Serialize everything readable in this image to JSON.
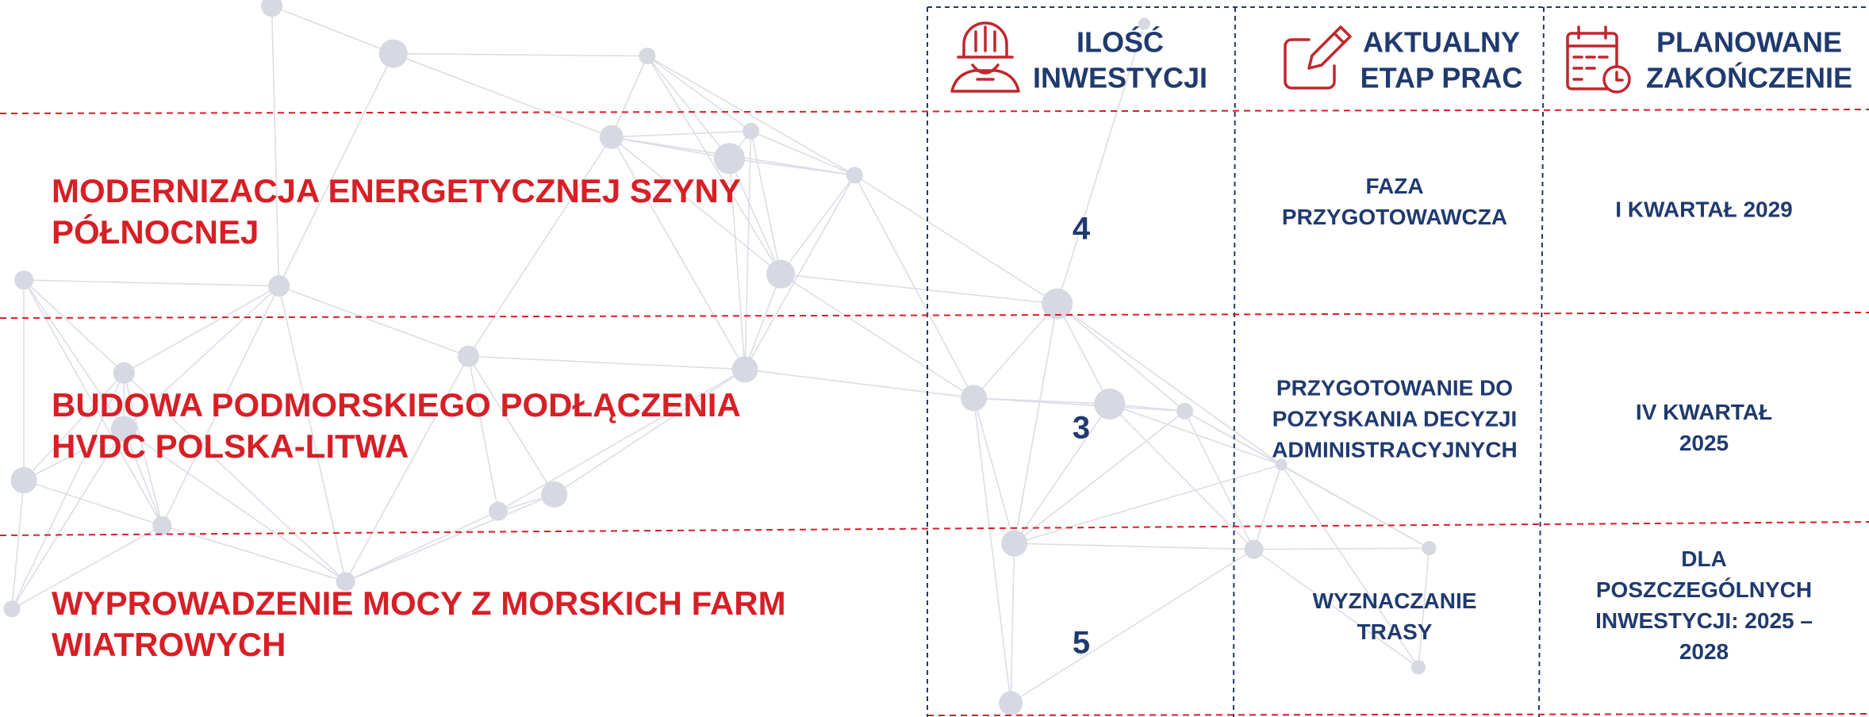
{
  "header": {
    "columns": [
      {
        "label_lines": [
          "ILOŚĆ",
          "INWESTYCJI"
        ]
      },
      {
        "label_lines": [
          "AKTUALNY",
          "ETAP PRAC"
        ]
      },
      {
        "label_lines": [
          "PLANOWANE",
          "ZAKOŃCZENIE"
        ]
      }
    ]
  },
  "rows": [
    {
      "title_lines": [
        "MODERNIZACJA ENERGETYCZNEJ SZYNY",
        "PÓŁNOCNEJ"
      ],
      "count": 4,
      "stage_lines": [
        "FAZA",
        "PRZYGOTOWAWCZA"
      ],
      "completion_lines": [
        "I KWARTAŁ 2029"
      ]
    },
    {
      "title_lines": [
        "BUDOWA PODMORSKIEGO PODŁĄCZENIA",
        "HVDC POLSKA-LITWA"
      ],
      "count": 3,
      "stage_lines": [
        "PRZYGOTOWANIE DO",
        "POZYSKANIA DECYZJI",
        "ADMINISTRACYJNYCH"
      ],
      "completion_lines": [
        "IV KWARTAŁ",
        "2025"
      ]
    },
    {
      "title_lines": [
        "WYPROWADZENIE MOCY Z MORSKICH FARM",
        "WIATROWYCH"
      ],
      "count": 5,
      "stage_lines": [
        "WYZNACZANIE",
        "TRASY"
      ],
      "completion_lines": [
        "DLA",
        "POSZCZEGÓLNYCH",
        "INWESTYCJI: 2025 –",
        "2028"
      ]
    }
  ]
}
